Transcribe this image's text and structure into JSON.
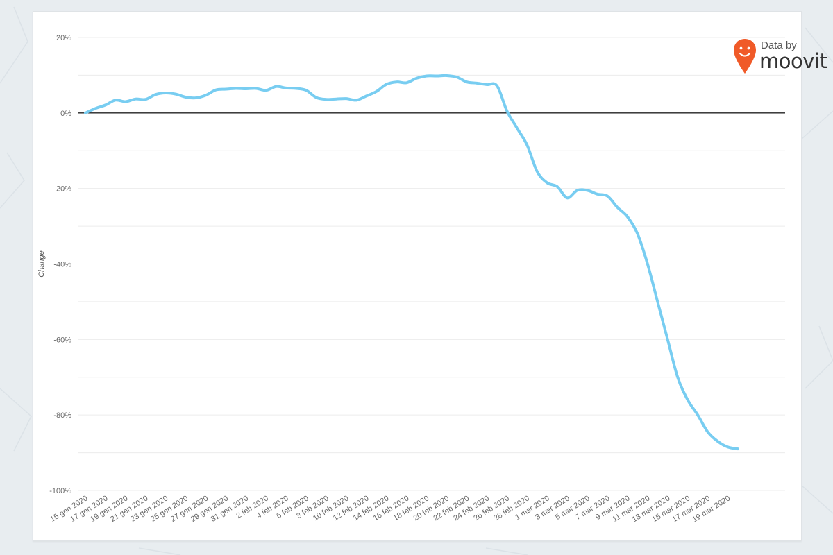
{
  "logo": {
    "prefix": "Data by",
    "name": "moovit"
  },
  "colors": {
    "line": "#78cdf1",
    "zero_line": "#222222",
    "grid": "#ececec",
    "tick_text": "#666666",
    "logo_pin": "#f05a28"
  },
  "chart_data": {
    "type": "line",
    "ylabel": "Change",
    "ylim": [
      -100,
      20
    ],
    "y_ticks": [
      20,
      0,
      -20,
      -40,
      -60,
      -80,
      -100
    ],
    "y_tick_labels": [
      "20%",
      "0%",
      "-20%",
      "-40%",
      "-60%",
      "-80%",
      "-100%"
    ],
    "x_tick_labels": [
      "15 gen 2020",
      "17 gen 2020",
      "19 gen 2020",
      "21 gen 2020",
      "23 gen 2020",
      "25 gen 2020",
      "27 gen 2020",
      "29 gen 2020",
      "31 gen 2020",
      "2 feb 2020",
      "4 feb 2020",
      "6 feb 2020",
      "8 feb 2020",
      "10 feb 2020",
      "12 feb 2020",
      "14 feb 2020",
      "16 feb 2020",
      "18 feb 2020",
      "20 feb 2020",
      "22 feb 2020",
      "24 feb 2020",
      "26 feb 2020",
      "28 feb 2020",
      "1 mar 2020",
      "3 mar 2020",
      "5 mar 2020",
      "7 mar 2020",
      "9 mar 2020",
      "11 mar 2020",
      "13 mar 2020",
      "15 mar 2020",
      "17 mar 2020",
      "19 mar 2020"
    ],
    "x": [
      "15 gen 2020",
      "16 gen 2020",
      "17 gen 2020",
      "18 gen 2020",
      "19 gen 2020",
      "20 gen 2020",
      "21 gen 2020",
      "22 gen 2020",
      "23 gen 2020",
      "24 gen 2020",
      "25 gen 2020",
      "26 gen 2020",
      "27 gen 2020",
      "28 gen 2020",
      "29 gen 2020",
      "30 gen 2020",
      "31 gen 2020",
      "1 feb 2020",
      "2 feb 2020",
      "3 feb 2020",
      "4 feb 2020",
      "5 feb 2020",
      "6 feb 2020",
      "7 feb 2020",
      "8 feb 2020",
      "9 feb 2020",
      "10 feb 2020",
      "11 feb 2020",
      "12 feb 2020",
      "13 feb 2020",
      "14 feb 2020",
      "15 feb 2020",
      "16 feb 2020",
      "17 feb 2020",
      "18 feb 2020",
      "19 feb 2020",
      "20 feb 2020",
      "21 feb 2020",
      "22 feb 2020",
      "23 feb 2020",
      "24 feb 2020",
      "25 feb 2020",
      "26 feb 2020",
      "27 feb 2020",
      "28 feb 2020",
      "29 feb 2020",
      "1 mar 2020",
      "2 mar 2020",
      "3 mar 2020",
      "4 mar 2020",
      "5 mar 2020",
      "6 mar 2020",
      "7 mar 2020",
      "8 mar 2020",
      "9 mar 2020",
      "10 mar 2020",
      "11 mar 2020",
      "12 mar 2020",
      "13 mar 2020",
      "14 mar 2020",
      "15 mar 2020",
      "16 mar 2020",
      "17 mar 2020",
      "18 mar 2020",
      "19 mar 2020",
      "20 mar 2020"
    ],
    "series": [
      {
        "values": [
          0,
          1.2,
          2.1,
          3.4,
          3.0,
          3.7,
          3.6,
          4.9,
          5.3,
          5.0,
          4.2,
          4.0,
          4.7,
          6.1,
          6.3,
          6.5,
          6.4,
          6.5,
          6.0,
          7.0,
          6.6,
          6.5,
          6.0,
          4.1,
          3.6,
          3.7,
          3.8,
          3.4,
          4.5,
          5.7,
          7.6,
          8.2,
          8.0,
          9.2,
          9.8,
          9.8,
          9.9,
          9.5,
          8.2,
          7.9,
          7.5,
          7.2,
          0.5,
          -4.0,
          -8.5,
          -15.5,
          -18.5,
          -19.5,
          -22.5,
          -20.5,
          -20.5,
          -21.5,
          -22.0,
          -25.0,
          -27.5,
          -32.0,
          -40.0,
          -50.0,
          -60.0,
          -70.0,
          -76.0,
          -80.0,
          -84.5,
          -87.0,
          -88.5,
          -89.0
        ]
      }
    ],
    "grid": true,
    "legend": "none"
  }
}
